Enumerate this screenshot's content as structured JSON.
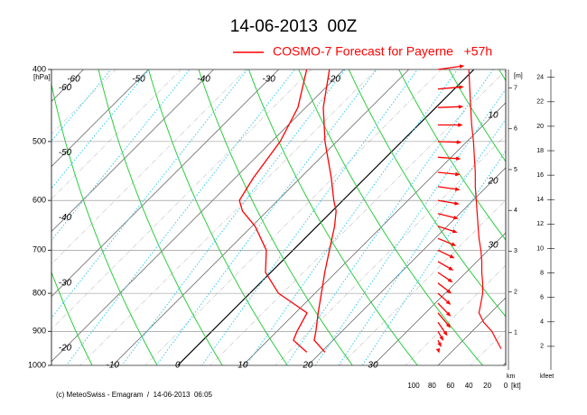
{
  "title": "14-06-2013  00Z",
  "footer": "(c) MeteoSwiss - Emagram  /  14-06-2013  06:05",
  "chart_data": {
    "type": "emagram",
    "ylabel": "[hPa]",
    "log_y": true,
    "ylim": [
      1000,
      400
    ],
    "yticks": [
      400,
      500,
      600,
      700,
      800,
      900,
      1000
    ],
    "xlim": [
      -19.4,
      50.4
    ],
    "xticks": [
      -10,
      0,
      10,
      20,
      30
    ],
    "xticks_top": [
      -60,
      -50,
      -40,
      -30,
      -20
    ],
    "xticks_left": [
      -60,
      -50,
      -40,
      -30,
      -20
    ],
    "grid": true,
    "series": [
      {
        "name": "COSMO-7 Forecast for Payerne   +57h",
        "color": "#ff0000",
        "pressure": [
          960,
          925,
          900,
          850,
          800,
          750,
          700,
          650,
          620,
          600,
          560,
          500,
          450,
          400
        ],
        "temperature": [
          20.6,
          17.1,
          16.0,
          13.5,
          11.0,
          8.3,
          5.6,
          2.7,
          0.6,
          -1.4,
          -5.2,
          -11.8,
          -17.3,
          -22.2
        ],
        "dewpoint": [
          17.8,
          13.9,
          13.1,
          11.8,
          4.4,
          -0.8,
          -4.1,
          -9.5,
          -13.8,
          -15.9,
          -17.2,
          -18.7,
          -21.2,
          -25.7
        ]
      }
    ],
    "wind": {
      "color": "#ff0000",
      "pressure": [
        400,
        425,
        450,
        475,
        500,
        525,
        550,
        575,
        600,
        625,
        650,
        675,
        700,
        725,
        750,
        775,
        800,
        825,
        850,
        875,
        900,
        925,
        950
      ],
      "speed": [
        40,
        39,
        38,
        37,
        35,
        34,
        33,
        33,
        32,
        31,
        30,
        29,
        27,
        26,
        26,
        25,
        25,
        27,
        29,
        24,
        15,
        10,
        5
      ],
      "direction": [
        262,
        265,
        268,
        270,
        272,
        274,
        276,
        278,
        280,
        284,
        288,
        292,
        296,
        300,
        304,
        308,
        312,
        316,
        320,
        325,
        330,
        335,
        345
      ]
    },
    "wind_axis_label": "[kt]",
    "wind_lim": [
      100,
      0
    ],
    "wind_ticks": [
      100,
      80,
      60,
      40,
      20,
      0
    ],
    "right_labels": [
      10,
      20,
      30
    ],
    "km_label": "km",
    "km_unit": "[m]",
    "km_lim": [
      0,
      7.3
    ],
    "km_ticks": [
      1,
      2,
      3,
      4,
      5,
      6,
      7
    ],
    "kfeet_label": "kfeet",
    "kfeet_lim": [
      0,
      24.2
    ],
    "kfeet_ticks": [
      2,
      4,
      6,
      8,
      10,
      12,
      14,
      16,
      18,
      20,
      22,
      24
    ]
  }
}
